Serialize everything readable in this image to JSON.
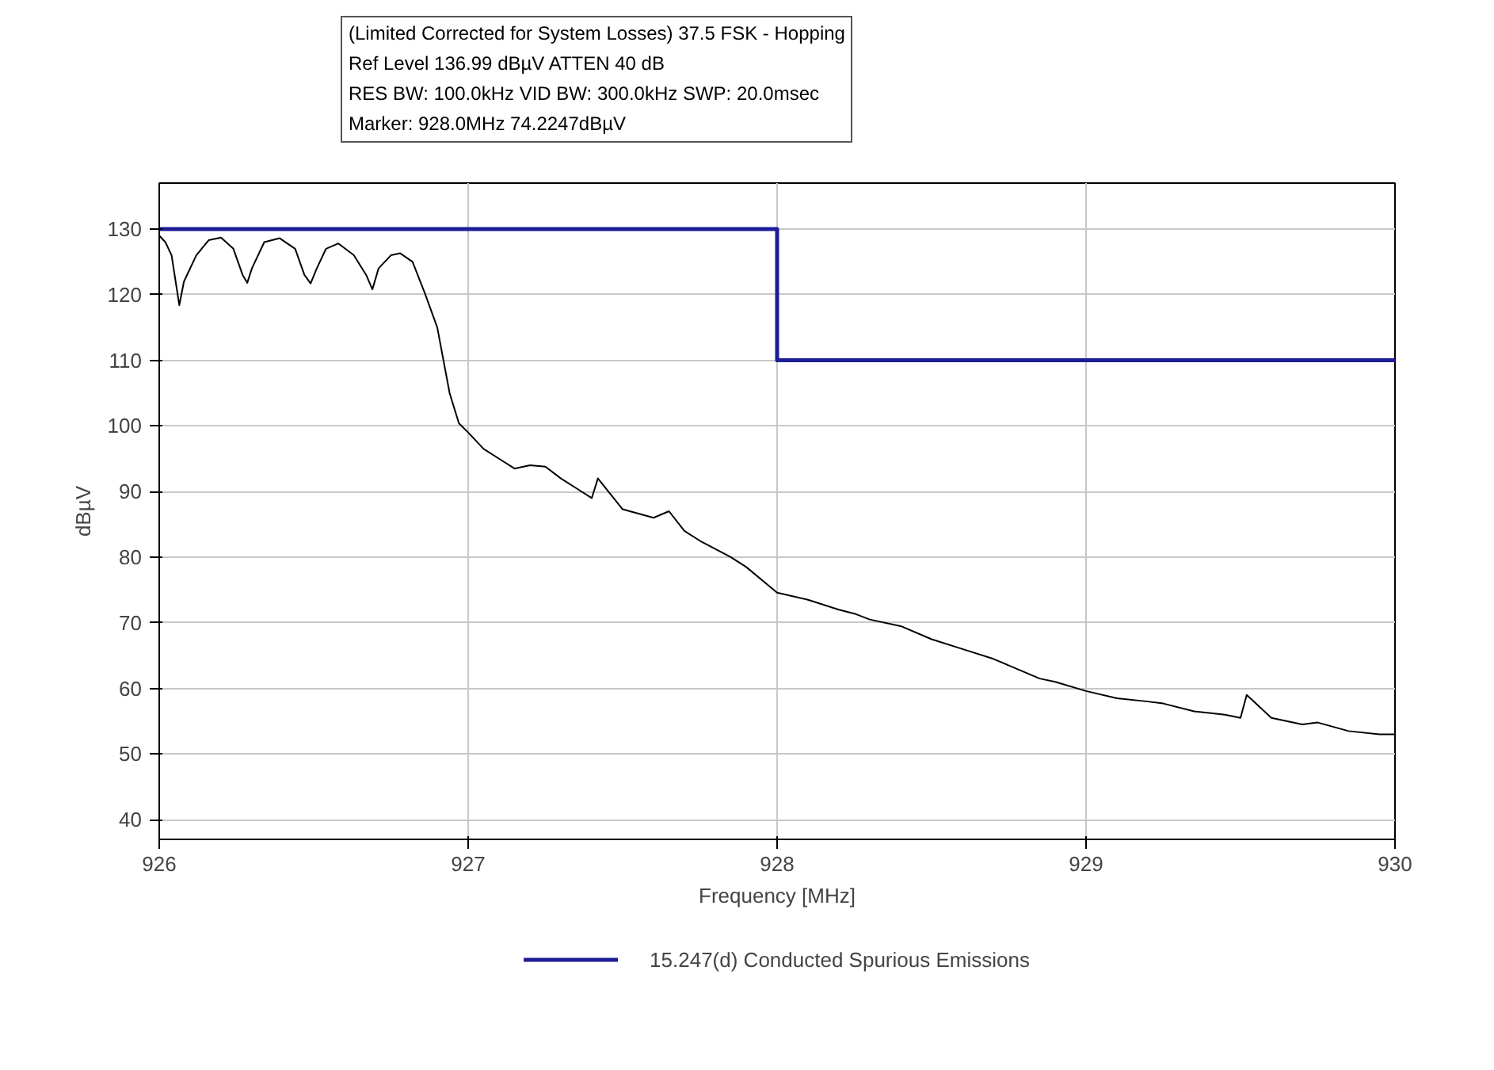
{
  "chart_data": {
    "type": "line",
    "title": "(Limited Corrected for System Losses) 37.5 FSK - Hopping",
    "annotations": [
      "Ref Level 136.99 dBµV    ATTEN 40 dB",
      "RES BW: 100.0kHz  VID BW: 300.0kHz  SWP: 20.0msec",
      "Marker: 928.0MHz  74.2247dBµV"
    ],
    "xlabel": "Frequency [MHz]",
    "ylabel": "dBµV",
    "xlim": [
      926,
      930
    ],
    "ylim": [
      37,
      137
    ],
    "xticks": [
      926,
      927,
      928,
      929,
      930
    ],
    "yticks": [
      40,
      50,
      60,
      70,
      80,
      90,
      100,
      110,
      120,
      130
    ],
    "grid": true,
    "legend": "bottom",
    "marker": "none",
    "line_style": "solid",
    "series": [
      {
        "color": "#000000",
        "x": [
          926.0,
          926.02,
          926.04,
          926.065,
          926.08,
          926.12,
          926.16,
          926.2,
          926.24,
          926.27,
          926.285,
          926.3,
          926.34,
          926.39,
          926.44,
          926.47,
          926.49,
          926.51,
          926.54,
          926.58,
          926.63,
          926.67,
          926.69,
          926.71,
          926.75,
          926.78,
          926.82,
          926.86,
          926.9,
          926.94,
          926.97,
          927.0,
          927.05,
          927.1,
          927.15,
          927.2,
          927.25,
          927.3,
          927.35,
          927.4,
          927.42,
          927.5,
          927.6,
          927.65,
          927.7,
          927.75,
          927.85,
          927.9,
          928.0,
          928.1,
          928.2,
          928.25,
          928.3,
          928.4,
          928.5,
          928.6,
          928.7,
          928.75,
          928.85,
          928.9,
          929.0,
          929.1,
          929.2,
          929.25,
          929.35,
          929.45,
          929.5,
          929.52,
          929.6,
          929.7,
          929.75,
          929.85,
          929.95,
          930.0
        ],
        "values": [
          129,
          128,
          126,
          118.4,
          122,
          126,
          128.3,
          128.7,
          127,
          123,
          121.8,
          124,
          128,
          128.6,
          127,
          123,
          121.7,
          124,
          127,
          127.8,
          126,
          123,
          120.8,
          124,
          126,
          126.3,
          125,
          120.2,
          115,
          105,
          100.4,
          99,
          96.5,
          95,
          93.5,
          94,
          93.8,
          92,
          90.5,
          89,
          92,
          87.3,
          86,
          87,
          84,
          82.5,
          80,
          78.5,
          74.6,
          73.5,
          72,
          71.4,
          70.5,
          69.5,
          67.5,
          66,
          64.5,
          63.5,
          61.5,
          61,
          59.6,
          58.5,
          58,
          57.7,
          56.5,
          56,
          55.5,
          59,
          55.5,
          54.5,
          54.8,
          53.5,
          53,
          53
        ]
      },
      {
        "name": "15.247(d) Conducted Spurious Emissions",
        "color": "#1c1c96",
        "x": [
          926,
          928,
          928,
          930
        ],
        "values": [
          130,
          130,
          110,
          110
        ]
      }
    ]
  }
}
